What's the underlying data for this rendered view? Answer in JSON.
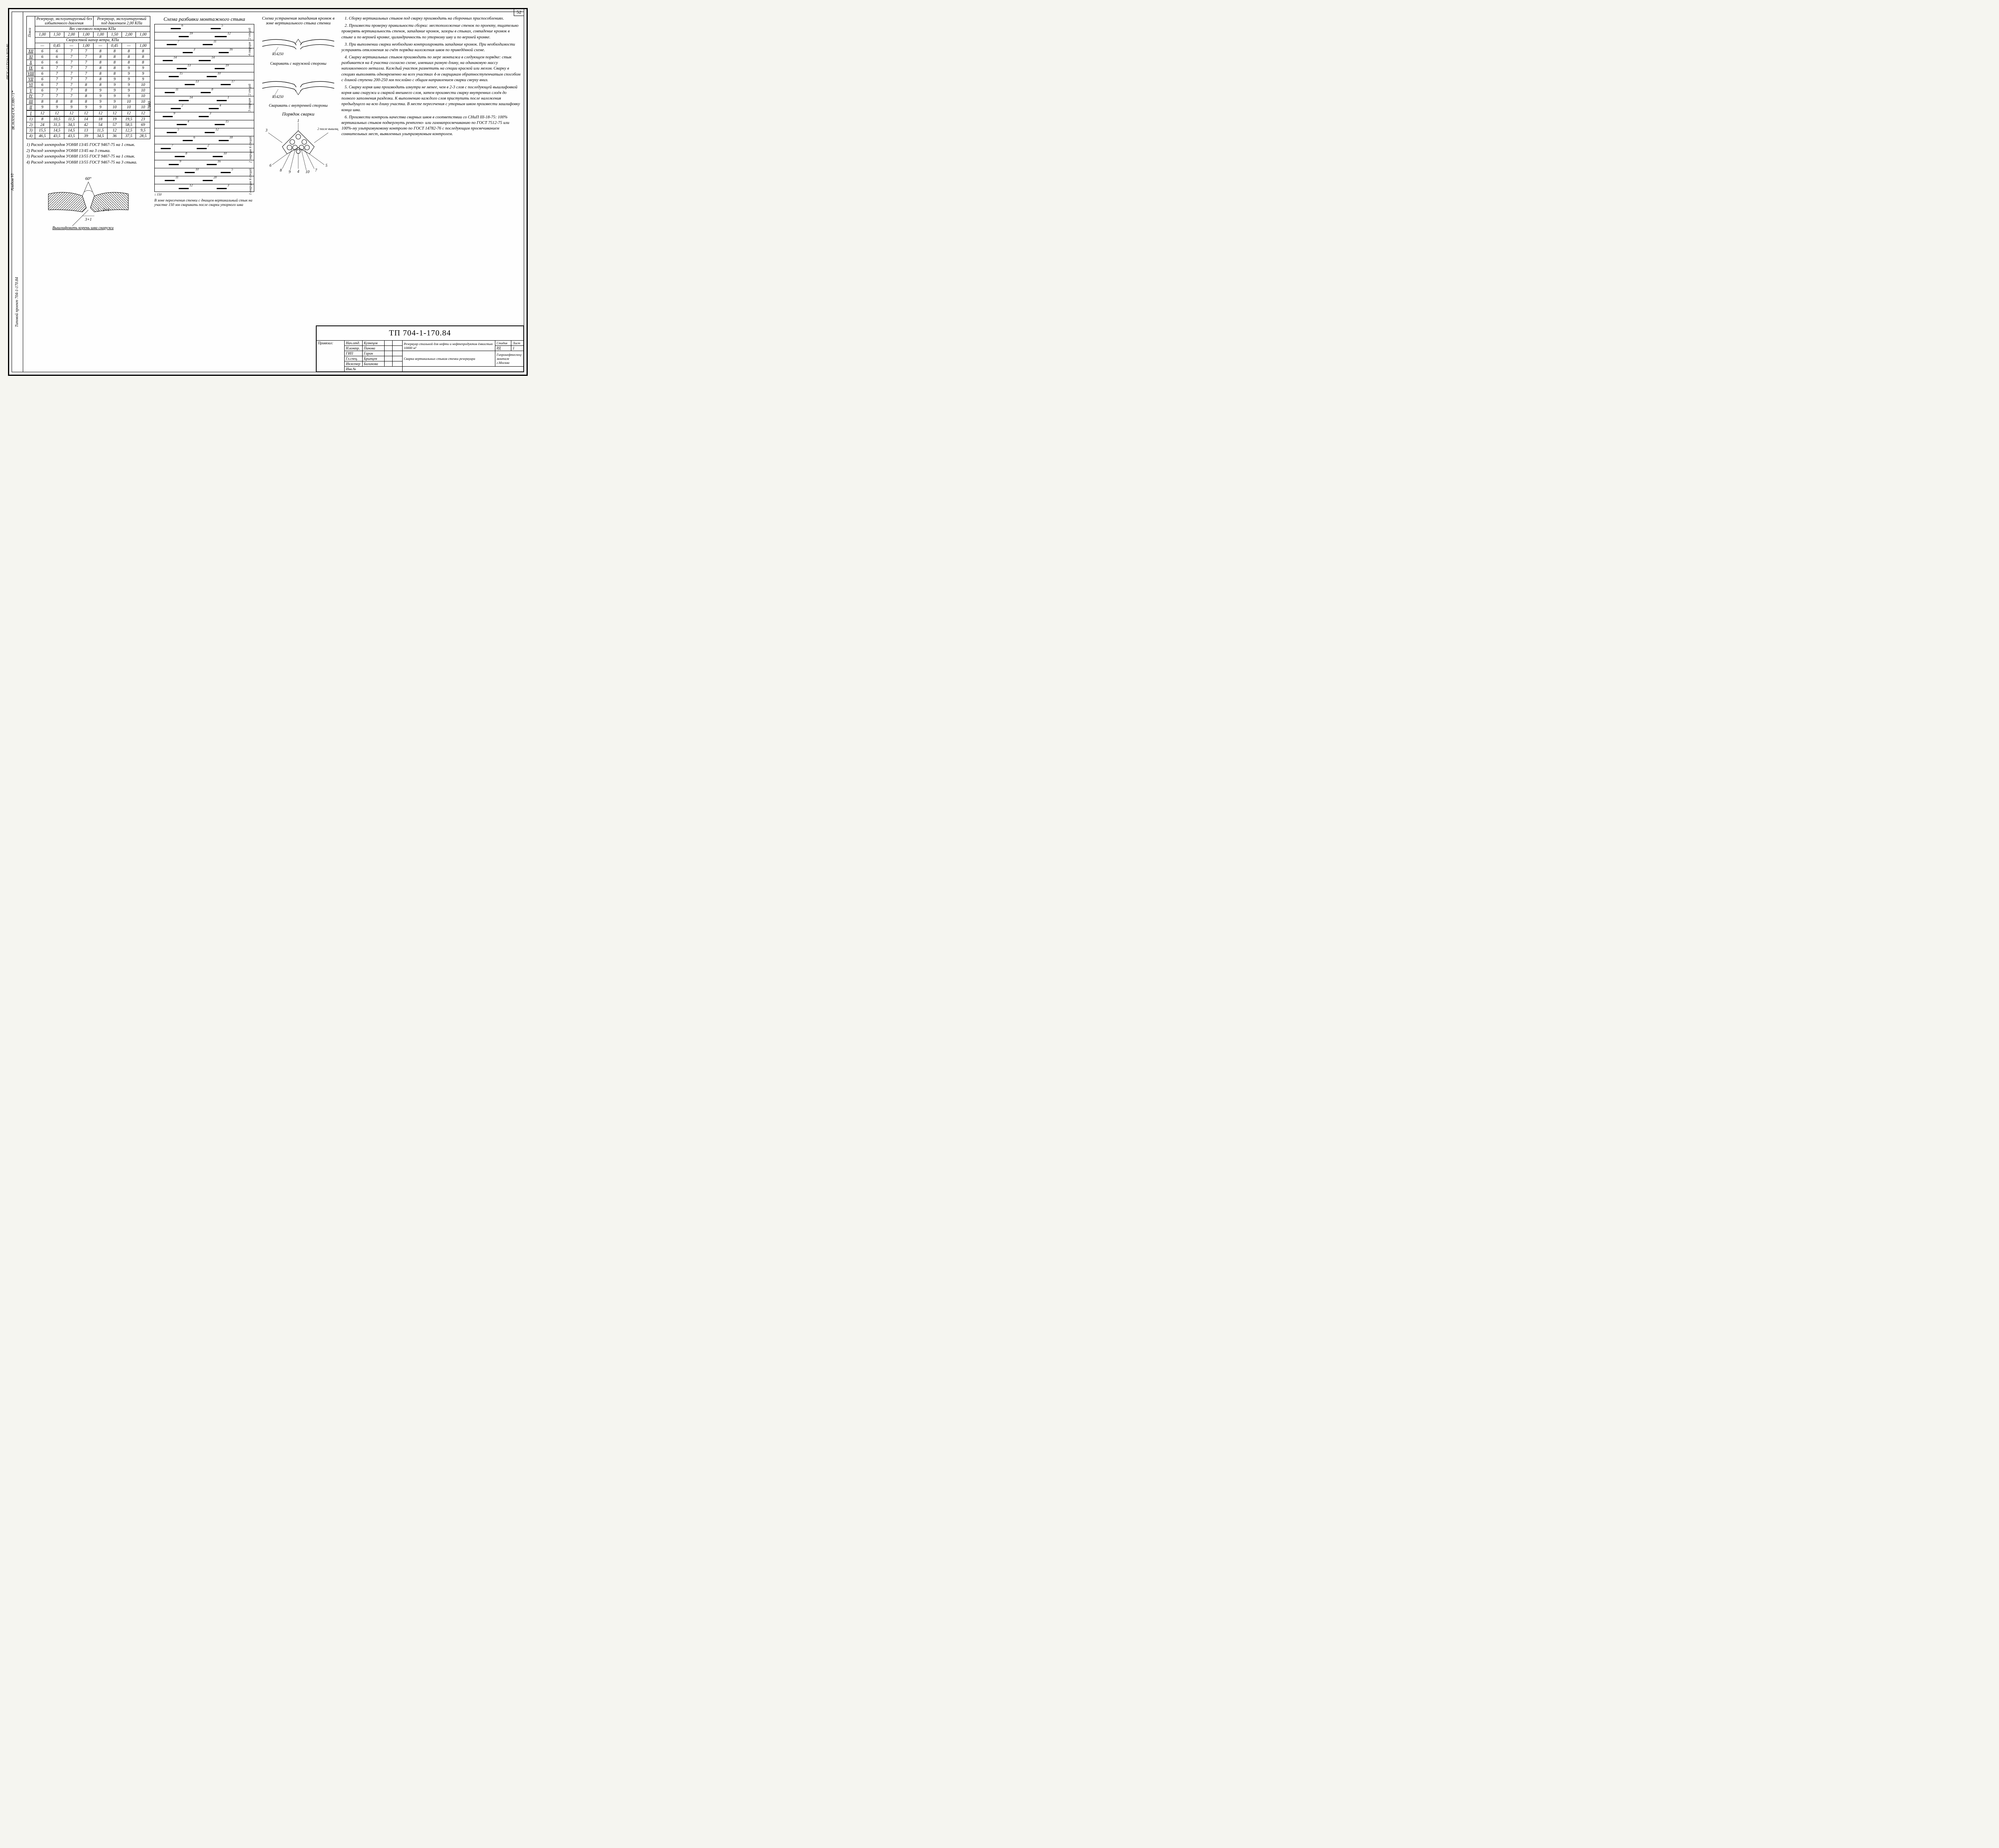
{
  "page_number": "52",
  "side_texts": {
    "project": "Типовой проект 704-1-170.84",
    "album": "Альбом VI",
    "material": "ВСт3сп5ГОСТ380-71*",
    "code": "09Г2С-12 ТУ14-1-3023-80"
  },
  "table": {
    "header_group_a": "Резервуар, эксплуатируемый без избыточного давления",
    "header_group_b": "Резервуар, эксплуатируемый под давлением 2,00 КПа",
    "sub1": "Вес снегового покрова КПа",
    "sub2": "Скоростной напор ветра, КПа",
    "belt": "Пояса",
    "snow_vals": [
      "1,00",
      "1,50",
      "2,00",
      "1,00",
      "1,00",
      "1,50",
      "2,00",
      "1,00"
    ],
    "wind_vals": [
      "—",
      "0,45",
      "—",
      "1,00",
      "—",
      "0,45",
      "—",
      "1,00"
    ],
    "row_labels": [
      "XII",
      "XI",
      "X",
      "IX",
      "VIII",
      "VII",
      "VI",
      "V",
      "IV",
      "III",
      "II",
      "I",
      "1)",
      "2)",
      "3)",
      "4)"
    ],
    "rows": [
      [
        "6",
        "6",
        "7",
        "7",
        "8",
        "8",
        "8",
        "8"
      ],
      [
        "6",
        "6",
        "7",
        "7",
        "8",
        "8",
        "8",
        "8"
      ],
      [
        "6",
        "6",
        "7",
        "7",
        "8",
        "8",
        "8",
        "8"
      ],
      [
        "6",
        "7",
        "7",
        "7",
        "8",
        "8",
        "9",
        "9"
      ],
      [
        "6",
        "7",
        "7",
        "7",
        "8",
        "8",
        "9",
        "9"
      ],
      [
        "6",
        "7",
        "7",
        "7",
        "8",
        "9",
        "9",
        "9"
      ],
      [
        "6",
        "7",
        "7",
        "8",
        "8",
        "9",
        "9",
        "10"
      ],
      [
        "6",
        "7",
        "7",
        "8",
        "9",
        "9",
        "9",
        "10"
      ],
      [
        "7",
        "7",
        "7",
        "8",
        "9",
        "9",
        "9",
        "10"
      ],
      [
        "8",
        "8",
        "8",
        "8",
        "9",
        "9",
        "10",
        "10"
      ],
      [
        "9",
        "9",
        "9",
        "9",
        "9",
        "10",
        "10",
        "10"
      ],
      [
        "12",
        "12",
        "12",
        "12",
        "12",
        "12",
        "12",
        "12"
      ],
      [
        "8",
        "10,5",
        "11,5",
        "14",
        "18",
        "19",
        "19,5",
        "23"
      ],
      [
        "24",
        "31,5",
        "34,5",
        "42",
        "54",
        "57",
        "58,5",
        "69"
      ],
      [
        "15,5",
        "14,5",
        "14,5",
        "13",
        "11,5",
        "12",
        "12,5",
        "9,5"
      ],
      [
        "46,5",
        "43,5",
        "43,5",
        "39",
        "34,5",
        "36",
        "37,5",
        "28,5"
      ]
    ]
  },
  "footnotes": [
    "1) Расход электродов УОНИ 13/45 ГОСТ 9467-75 на 1 стык.",
    "2) Расход электродов УОНИ 13/45 на 3 стыка.",
    "3) Расход электродов УОНИ 13/55 ГОСТ 9467-75 на 1 стык.",
    "4) Расход электродов УОНИ 13/55 ГОСТ 9467-75 на 3 стыка."
  ],
  "weld_detail": {
    "angle": "60°",
    "gap": "3+1",
    "root": "2+1",
    "caption": "Вышлифовать корень шва снаружи"
  },
  "joint_scheme": {
    "title": "Схема разбивки монтажного стыка",
    "total_h": "17880",
    "bottom_dim": "150",
    "belt_h": "1490",
    "right_groups": [
      "4 сварщик 12 секций",
      "3 сварщик 12 секций",
      "2 сварщик 6 секций",
      "1 сварщик 6 секций"
    ],
    "note": "В зоне пересечения стенки с днищем вертикальный стык на участке 150 мм сваривать после сварки уторного шва"
  },
  "edge_fix": {
    "title": "Схема устранения западания кромок в зоне вертикального стыка стенки",
    "radius": "R14250",
    "cap_out": "Сваривать с наружной стороны",
    "cap_in": "Сваривать с внутренней стороны"
  },
  "weld_order": {
    "title": "Порядок сварки",
    "nums": [
      "1",
      "2 после вышлифов-ки корня шва",
      "3",
      "4",
      "5",
      "6",
      "7",
      "8",
      "9",
      "10"
    ]
  },
  "instructions": [
    "1. Сборку вертикальных стыков под сварку производить на сборочных приспособлениях.",
    "2. Произвести проверку правильности сборки: местоположение стенок по проекту, тщательно проверять вертикальность стенок, западание кромок, зазоры в стыках, совпадение кромок в стыке и по верхней кромке, цилиндричность по уторному шву и по верхней кромке.",
    "3. При выполнении сварки необходимо контролировать западание кромок. При необходимости устранять отклонения за счёт порядка наложения швов по приведённой схеме.",
    "4. Сварку вертикальных стыков производить по мере монтажа в следующем порядке: стык разбивается на 4 участка согласно схеме, имевших разную длину, на одинаковую массу наплавленного металла. Каждый участок разметить на секции краской или мелом. Сварку в секциях выполнять одновременно на всех участках 4-м сварщикам обратноступенчатым способом с длиной ступени 200-250 мм послойно с общим направлением сварки сверху вниз.",
    "5. Сварку корня шва производить изнутри не менее, чем в 2-3 слоя с последующей вышлифовкой корня шва снаружи и сваркой внешнего слоя, затем произвести сварку внутренних слоёв до полного заполнения разделки. К выполнению каждого слоя приступить после наложения предыдущего на всю длину участка. В месте пересечения с уторным швом произвести зашлифовку конца шва.",
    "6. Произвести контроль качества сварных швов в соответствии со СНиП III-18-75: 100% вертикальных стыков подвергнуть рентгено- или гаммапросвечиванию по ГОСТ 7512-75 или 100%-му ультразвуковому контролю по ГОСТ 14782-76 с последующим просвечиванием сомнительных мест, выявленных ультразвуковым контролем."
  ],
  "title_block": {
    "code": "ТП 704-1-170.84",
    "binding": "Привязал:",
    "inv": "Инв.№",
    "roles": [
      [
        "Нач.отд.",
        "Кузнецов"
      ],
      [
        "Н.контр.",
        "Панова"
      ],
      [
        "ГИП",
        "Гарин"
      ],
      [
        "Гл.спец.",
        "Брынцев"
      ],
      [
        "Инженер",
        "Балинова"
      ]
    ],
    "desc1": "Резервуар стальной для нефти и нефтепродуктов ёмкостью 10000 м³",
    "desc2": "Сварка вертикальных стыков стенки резервуара",
    "stage": "РД",
    "stage_h": "Стадия",
    "sheet_h": "Лист",
    "sheets_h": "Листов",
    "sheets": "1",
    "org": "Гипронефтеспец-монтаж г.Москва"
  },
  "colors": {
    "line": "#000000",
    "bg": "#fefefe",
    "hatch": "#000000"
  }
}
